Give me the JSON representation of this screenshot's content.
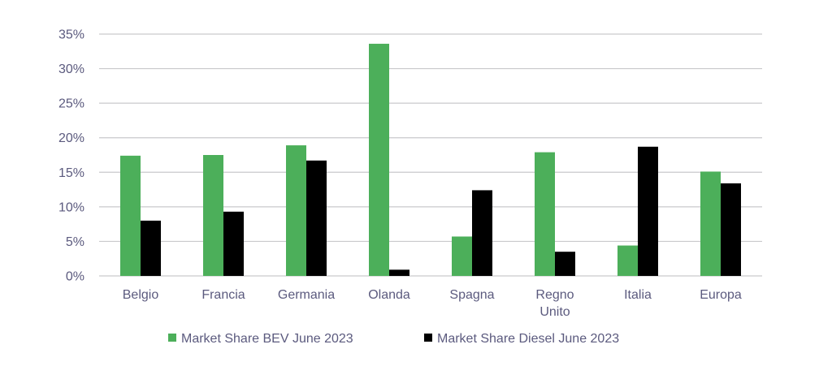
{
  "chart_data": {
    "type": "bar",
    "categories": [
      [
        "Belgio"
      ],
      [
        "Francia"
      ],
      [
        "Germania"
      ],
      [
        "Olanda"
      ],
      [
        "Spagna"
      ],
      [
        "Regno",
        "Unito"
      ],
      [
        "Italia"
      ],
      [
        "Europa"
      ]
    ],
    "series": [
      {
        "name": "Market Share BEV June 2023",
        "color": "#4caf5a",
        "values": [
          17.4,
          17.5,
          18.9,
          33.6,
          5.7,
          17.9,
          4.4,
          15.1
        ]
      },
      {
        "name": "Market Share Diesel June 2023",
        "color": "#000000",
        "values": [
          8.0,
          9.3,
          16.7,
          0.9,
          12.4,
          3.5,
          18.7,
          13.4
        ]
      }
    ],
    "y_ticks": [
      "0%",
      "5%",
      "10%",
      "15%",
      "20%",
      "25%",
      "30%",
      "35%"
    ],
    "y_tick_values": [
      0,
      5,
      10,
      15,
      20,
      25,
      30,
      35
    ],
    "ylim": [
      0,
      35
    ],
    "gridlines": true,
    "grid_color": "#c9c9cc",
    "text_color": "#5b5a7e",
    "legend_position": "bottom-center",
    "title": "",
    "xlabel": "",
    "ylabel": ""
  }
}
